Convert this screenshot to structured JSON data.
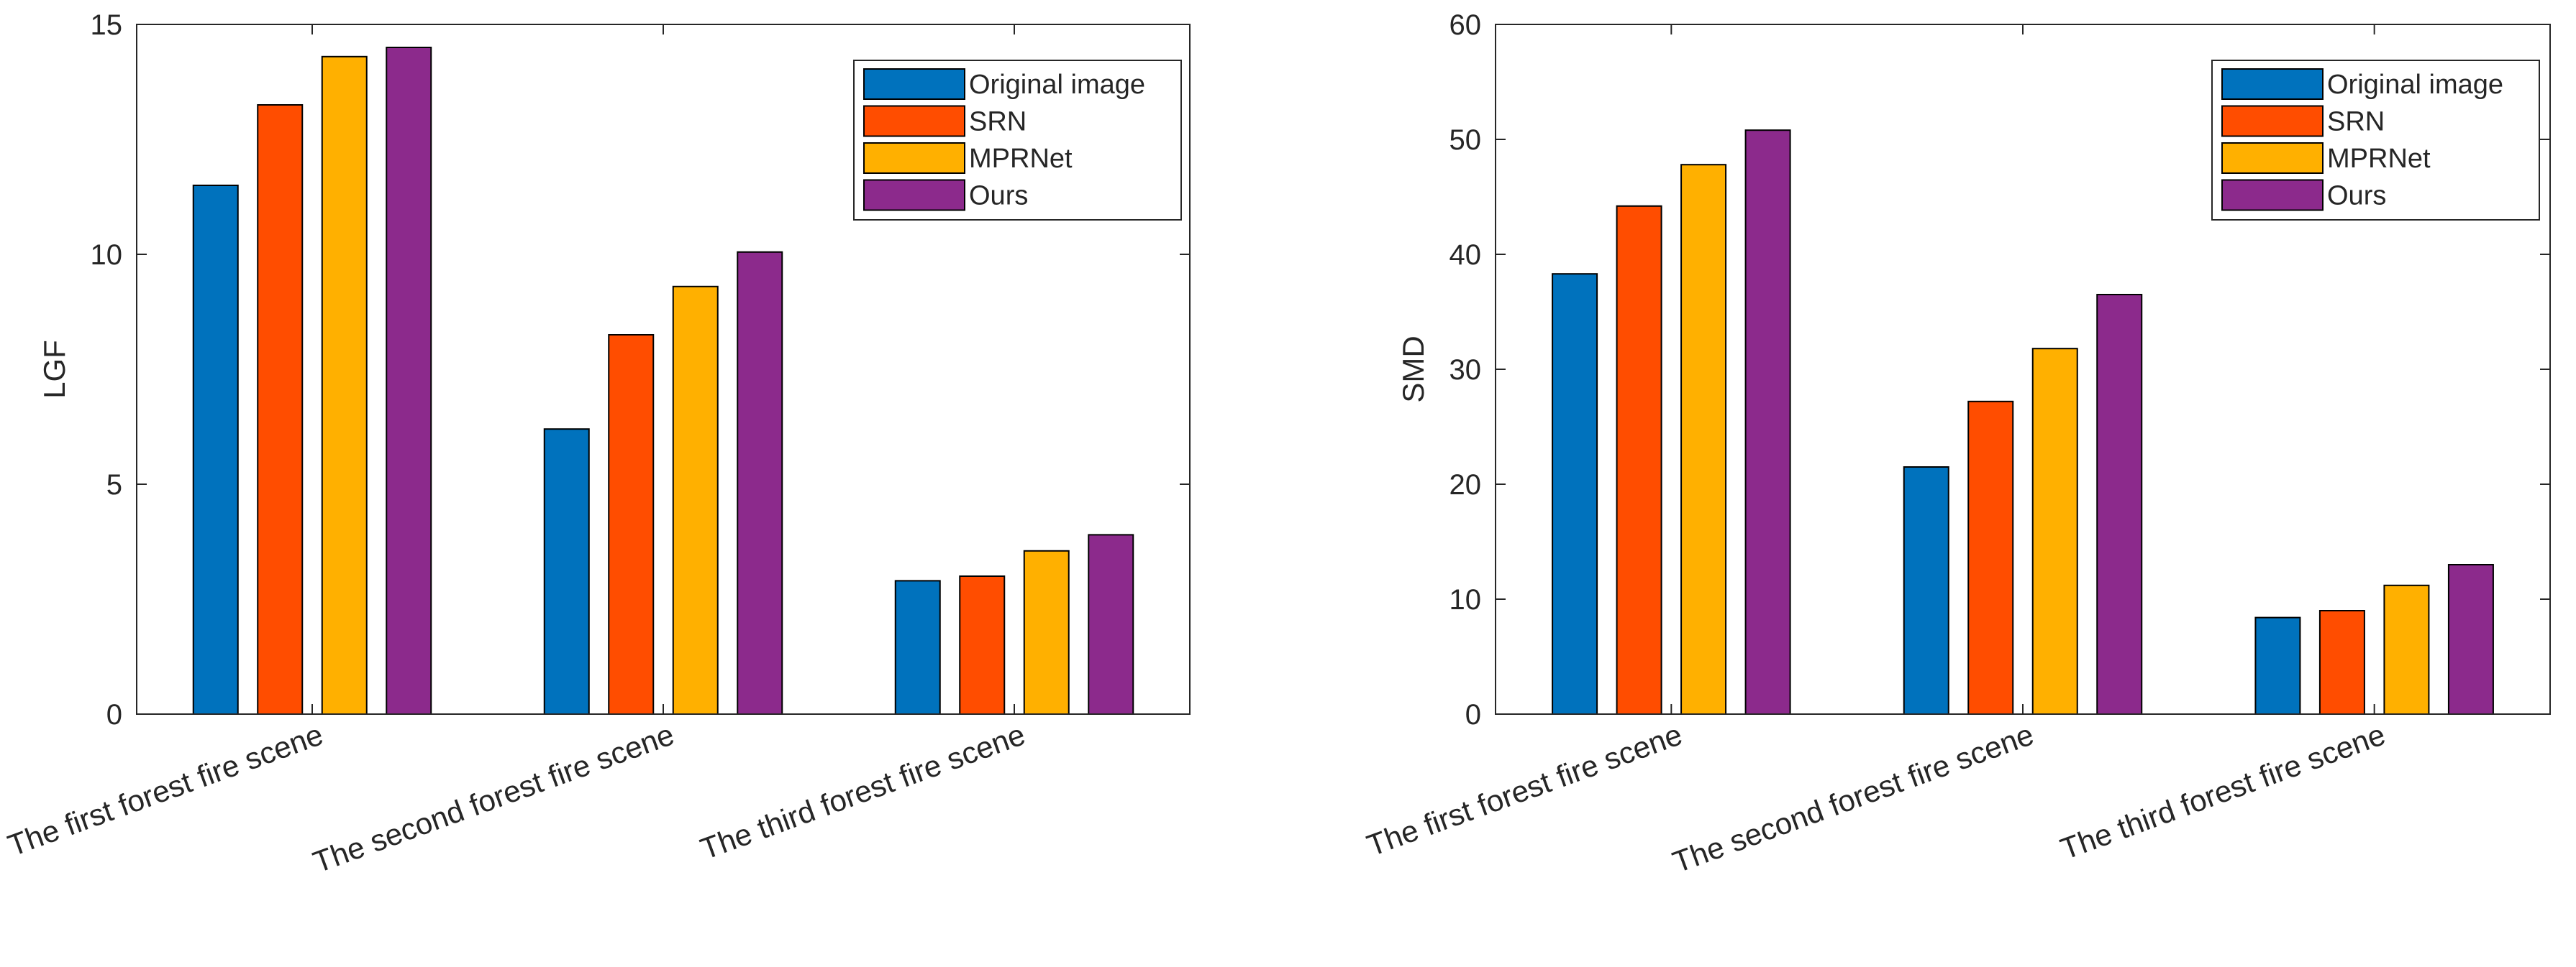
{
  "colors": {
    "series": [
      "#0072BD",
      "#FF4D00",
      "#FFB000",
      "#8C2A8C"
    ],
    "axis": "#262626",
    "background": "#ffffff"
  },
  "chart_data": [
    {
      "type": "bar",
      "title": "",
      "xlabel": "",
      "ylabel": "LGF",
      "ylim": [
        0,
        15
      ],
      "yticks": [
        0,
        5,
        10,
        15
      ],
      "grid": false,
      "legend_position": "top-right",
      "categories": [
        "The first forest fire scene",
        "The second forest fire scene",
        "The third forest fire scene"
      ],
      "series": [
        {
          "name": "Original image",
          "values": [
            11.5,
            6.2,
            2.9
          ]
        },
        {
          "name": "SRN",
          "values": [
            13.25,
            8.25,
            3.0
          ]
        },
        {
          "name": "MPRNet",
          "values": [
            14.3,
            9.3,
            3.55
          ]
        },
        {
          "name": "Ours",
          "values": [
            14.5,
            10.05,
            3.9
          ]
        }
      ]
    },
    {
      "type": "bar",
      "title": "",
      "xlabel": "",
      "ylabel": "SMD",
      "ylim": [
        0,
        60
      ],
      "yticks": [
        0,
        10,
        20,
        30,
        40,
        50,
        60
      ],
      "grid": false,
      "legend_position": "top-right",
      "categories": [
        "The first forest fire scene",
        "The second forest fire scene",
        "The third forest fire scene"
      ],
      "series": [
        {
          "name": "Original image",
          "values": [
            38.3,
            21.5,
            8.4
          ]
        },
        {
          "name": "SRN",
          "values": [
            44.2,
            27.2,
            9.0
          ]
        },
        {
          "name": "MPRNet",
          "values": [
            47.8,
            31.8,
            11.2
          ]
        },
        {
          "name": "Ours",
          "values": [
            50.8,
            36.5,
            13.0
          ]
        }
      ]
    }
  ]
}
